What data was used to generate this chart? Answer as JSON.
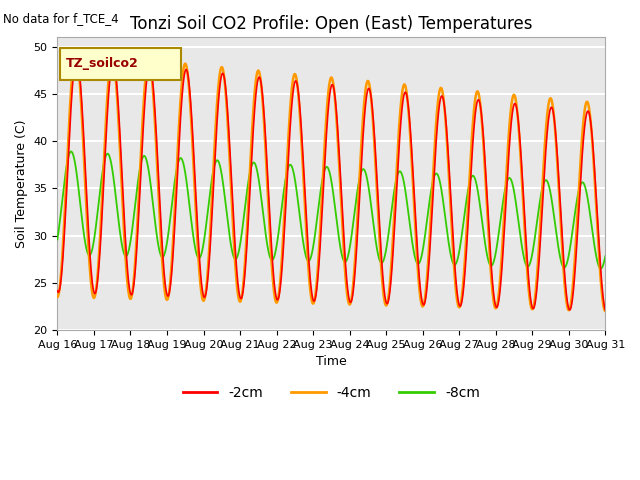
{
  "title": "Tonzi Soil CO2 Profile: Open (East) Temperatures",
  "xlabel": "Time",
  "ylabel": "Soil Temperature (C)",
  "top_left_text": "No data for f_TCE_4",
  "legend_label": "TZ_soilco2",
  "ylim": [
    20,
    51
  ],
  "yticks": [
    20,
    25,
    30,
    35,
    40,
    45,
    50
  ],
  "xtick_labels": [
    "Aug 16",
    "Aug 17",
    "Aug 18",
    "Aug 19",
    "Aug 20",
    "Aug 21",
    "Aug 22",
    "Aug 23",
    "Aug 24",
    "Aug 25",
    "Aug 26",
    "Aug 27",
    "Aug 28",
    "Aug 29",
    "Aug 30",
    "Aug 31"
  ],
  "colors": {
    "minus2cm": "#ff0000",
    "minus4cm": "#ff9900",
    "minus8cm": "#33cc00"
  },
  "legend_entries": [
    "-2cm",
    "-4cm",
    "-8cm"
  ],
  "background_color": "#e8e8e8",
  "figure_background": "#ffffff",
  "grid_color": "#ffffff",
  "title_fontsize": 12,
  "label_fontsize": 9,
  "tick_fontsize": 8
}
